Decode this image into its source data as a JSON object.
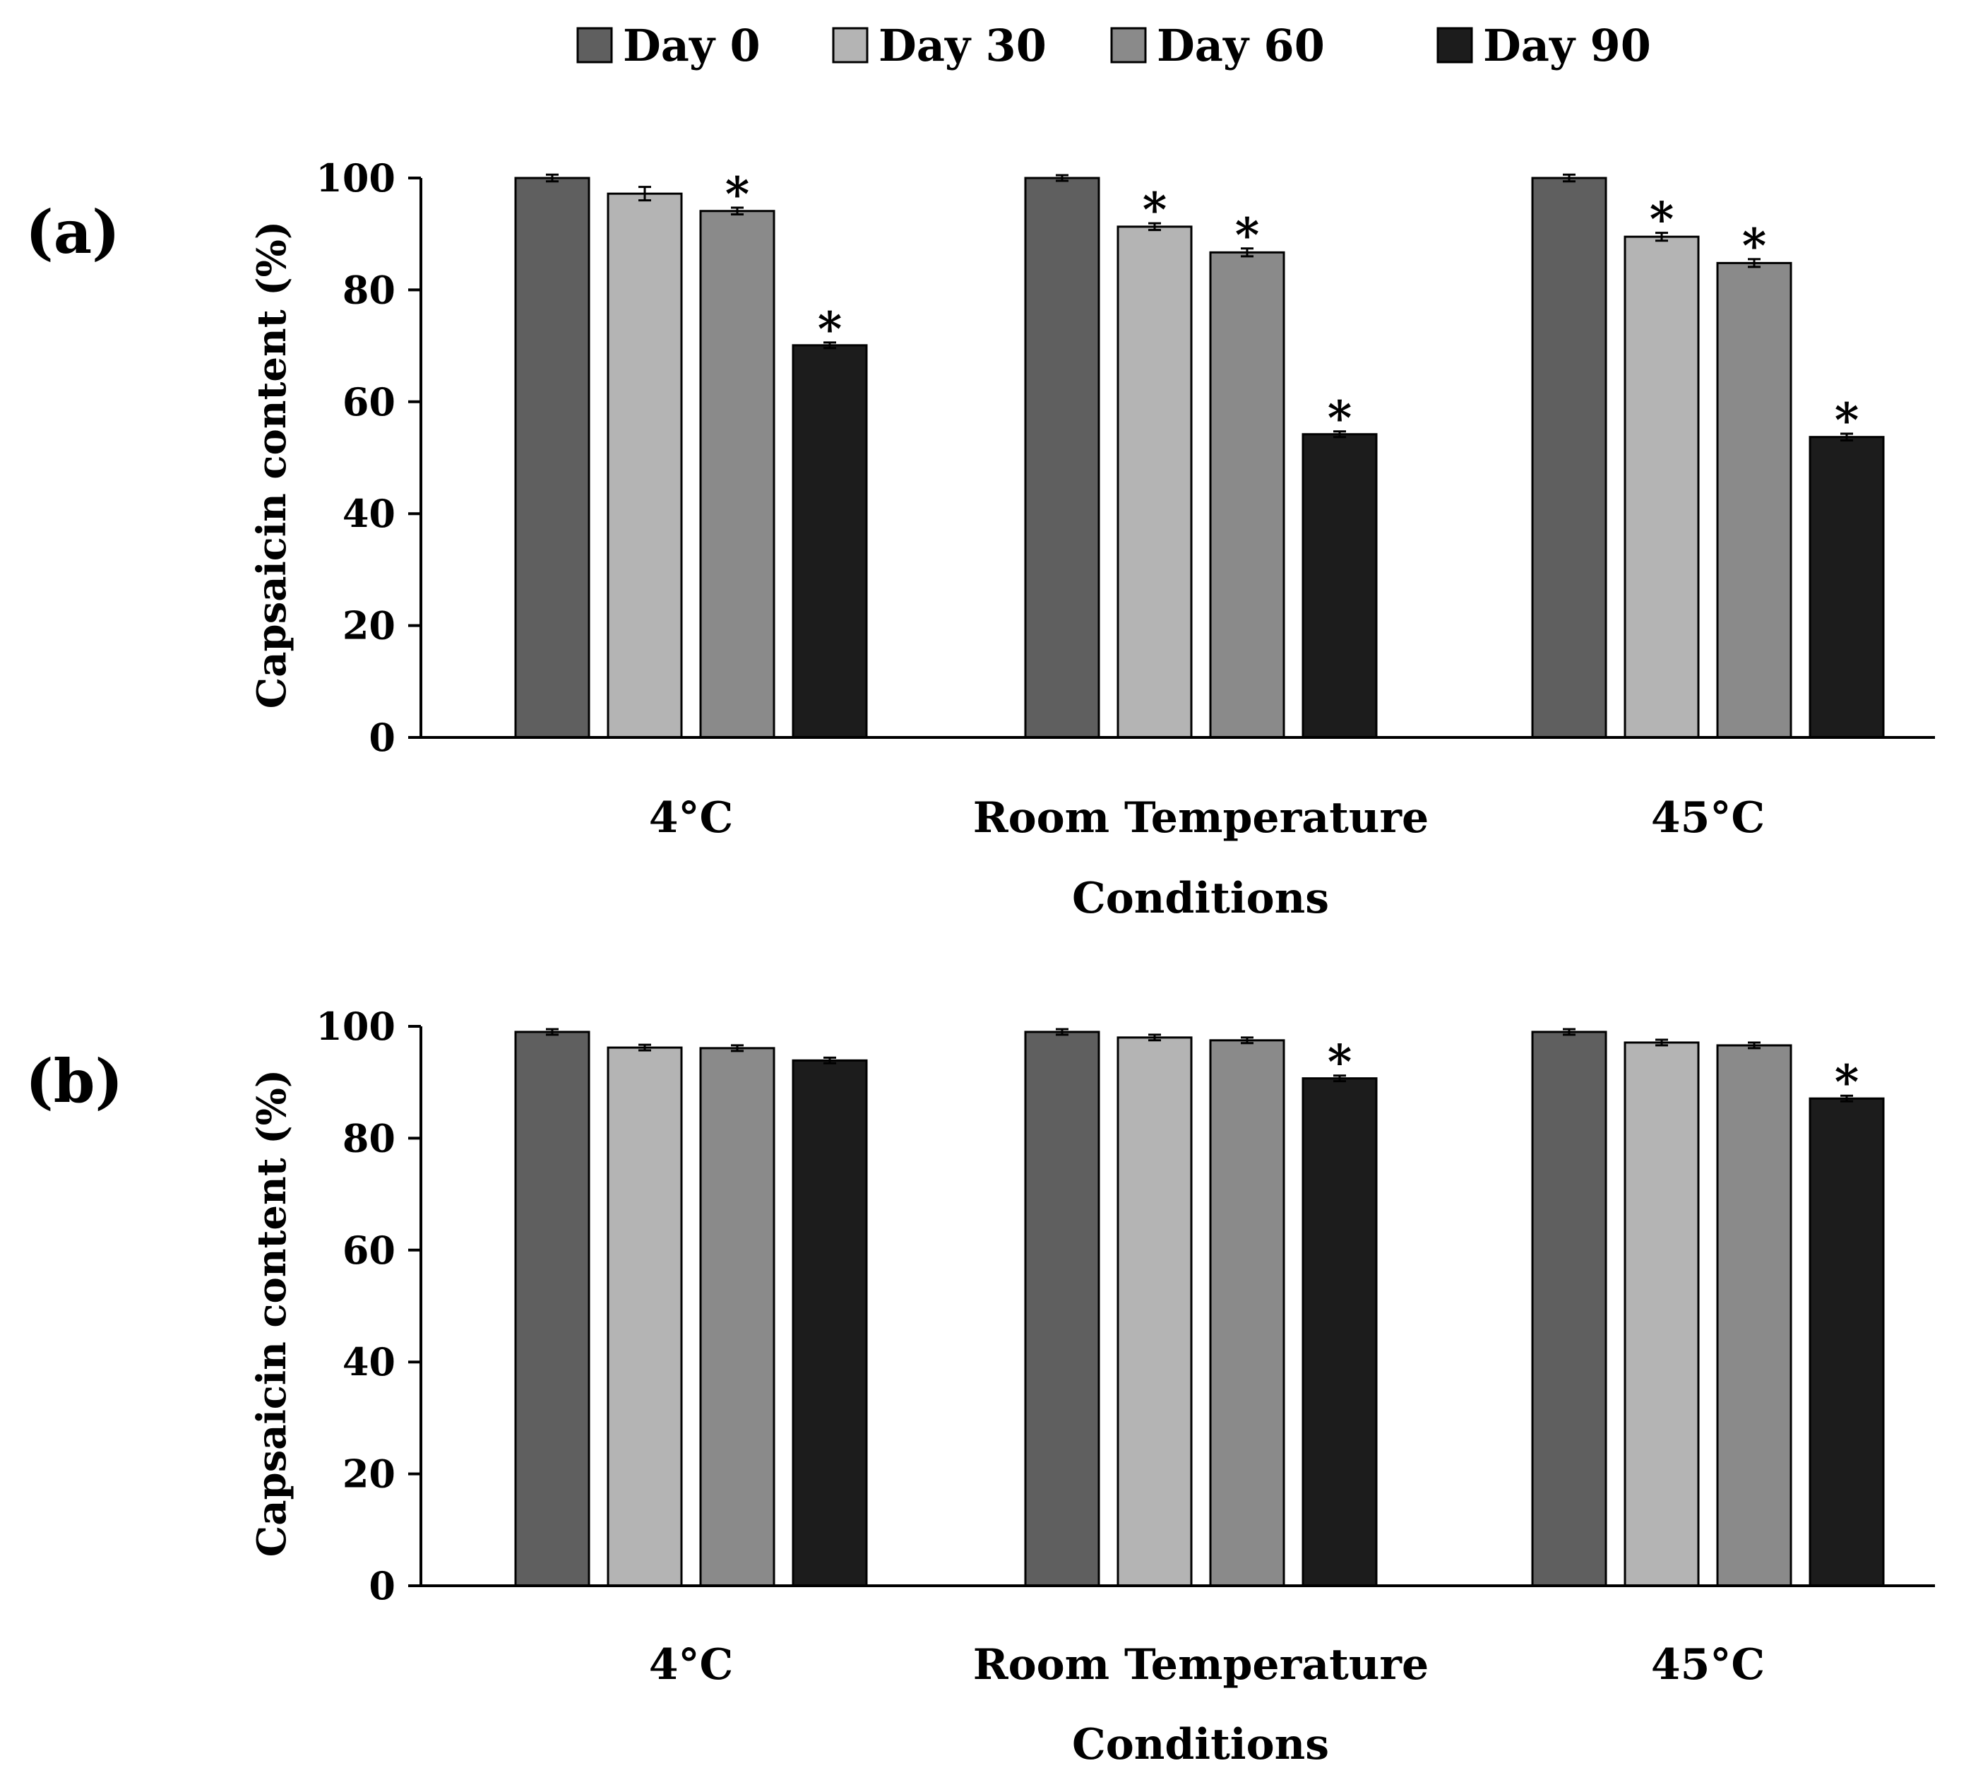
{
  "chart_data": [
    {
      "type": "bar",
      "panel_label": "(a)",
      "categories": [
        "4°C",
        "Room Temperature",
        "45°C"
      ],
      "series": [
        {
          "name": "Day 0",
          "color": "#5f5f5f",
          "values": [
            100,
            100,
            100
          ],
          "errors": [
            0.6,
            0.5,
            0.6
          ],
          "significant": [
            false,
            false,
            false
          ]
        },
        {
          "name": "Day 30",
          "color": "#b4b4b4",
          "values": [
            97.2,
            91.3,
            89.5
          ],
          "errors": [
            1.2,
            0.6,
            0.7
          ],
          "significant": [
            false,
            true,
            true
          ]
        },
        {
          "name": "Day 60",
          "color": "#8a8a8a",
          "values": [
            94.1,
            86.7,
            84.8
          ],
          "errors": [
            0.6,
            0.7,
            0.7
          ],
          "significant": [
            true,
            true,
            true
          ]
        },
        {
          "name": "Day 90",
          "color": "#1c1c1c",
          "values": [
            70.1,
            54.2,
            53.7
          ],
          "errors": [
            0.5,
            0.5,
            0.6
          ],
          "significant": [
            true,
            true,
            true
          ]
        }
      ],
      "significance_marker": "*",
      "xlabel": "Conditions",
      "ylabel": "Capsaicin content (%)",
      "ylim": [
        0,
        100
      ],
      "yticks": [
        0,
        20,
        40,
        60,
        80,
        100
      ],
      "grid": false
    },
    {
      "type": "bar",
      "panel_label": "(b)",
      "categories": [
        "4°C",
        "Room Temperature",
        "45°C"
      ],
      "series": [
        {
          "name": "Day 0",
          "color": "#5f5f5f",
          "values": [
            99,
            99,
            99
          ],
          "errors": [
            0.5,
            0.5,
            0.5
          ],
          "significant": [
            false,
            false,
            false
          ]
        },
        {
          "name": "Day 30",
          "color": "#b4b4b4",
          "values": [
            96.2,
            98,
            97.1
          ],
          "errors": [
            0.5,
            0.5,
            0.5
          ],
          "significant": [
            false,
            false,
            false
          ]
        },
        {
          "name": "Day 60",
          "color": "#8a8a8a",
          "values": [
            96.1,
            97.5,
            96.6
          ],
          "errors": [
            0.5,
            0.5,
            0.5
          ],
          "significant": [
            false,
            false,
            false
          ]
        },
        {
          "name": "Day 90",
          "color": "#1c1c1c",
          "values": [
            93.9,
            90.7,
            87.1
          ],
          "errors": [
            0.5,
            0.5,
            0.5
          ],
          "significant": [
            false,
            true,
            true
          ]
        }
      ],
      "significance_marker": "*",
      "xlabel": "Conditions",
      "ylabel": "Capsaicin content (%)",
      "ylim": [
        0,
        100
      ],
      "yticks": [
        0,
        20,
        40,
        60,
        80,
        100
      ],
      "grid": false
    }
  ],
  "legend": {
    "position": "top-center",
    "entries": [
      {
        "label": "Day 0",
        "color": "#5f5f5f"
      },
      {
        "label": "Day 30",
        "color": "#b4b4b4"
      },
      {
        "label": "Day 60",
        "color": "#8a8a8a"
      },
      {
        "label": "Day 90",
        "color": "#1c1c1c"
      }
    ]
  }
}
